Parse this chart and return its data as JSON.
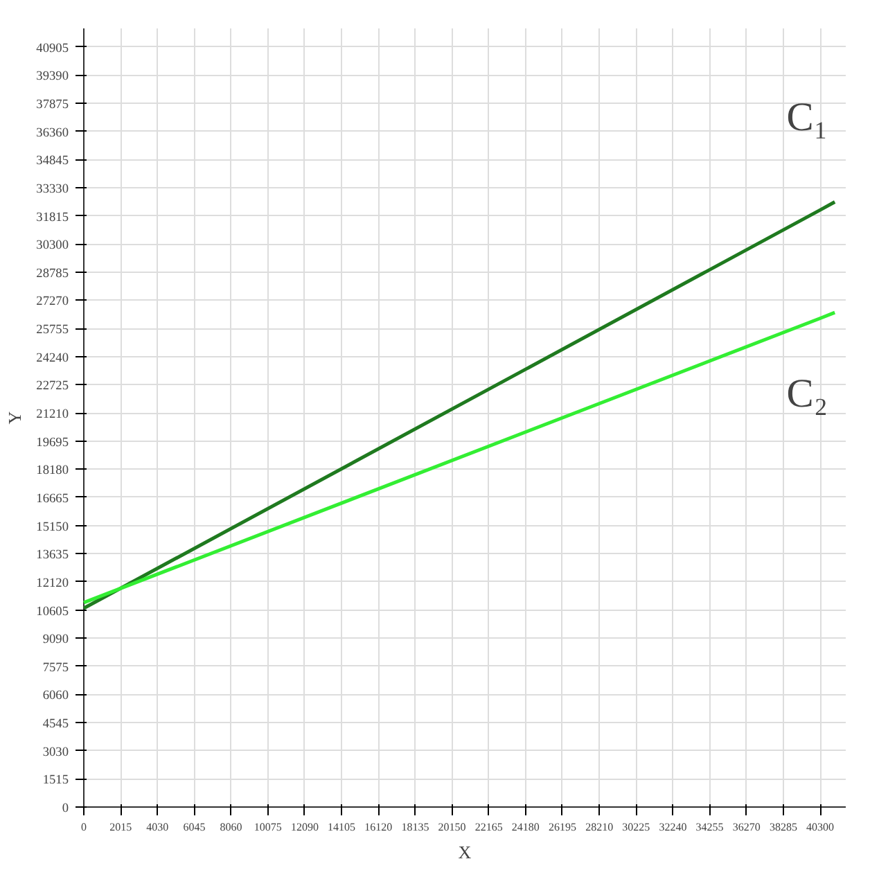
{
  "chart_data": {
    "type": "line",
    "xlabel": "X",
    "ylabel": "Y",
    "x": [
      0,
      40300,
      41100
    ],
    "series": [
      {
        "name": "C₁",
        "color": "#1f7a1f",
        "values": [
          10700,
          32130,
          32560
        ]
      },
      {
        "name": "C₂",
        "color": "#33ee33",
        "values": [
          11000,
          26300,
          26610
        ]
      }
    ],
    "xlim": [
      0,
      41700
    ],
    "ylim": [
      0,
      41900
    ],
    "xticks": [
      0,
      2015,
      4030,
      6045,
      8060,
      10075,
      12090,
      14105,
      16120,
      18135,
      20150,
      22165,
      24180,
      26195,
      28210,
      30225,
      32240,
      34255,
      36270,
      38285,
      40300
    ],
    "yticks": [
      0,
      1515,
      3030,
      4545,
      6060,
      7575,
      9090,
      10605,
      12120,
      13635,
      15150,
      16665,
      18180,
      19695,
      21210,
      22725,
      24240,
      25755,
      27270,
      28785,
      30300,
      31815,
      33330,
      34845,
      36360,
      37875,
      39390,
      40905
    ],
    "grid": true,
    "marker": "none",
    "line_style": "solid"
  }
}
